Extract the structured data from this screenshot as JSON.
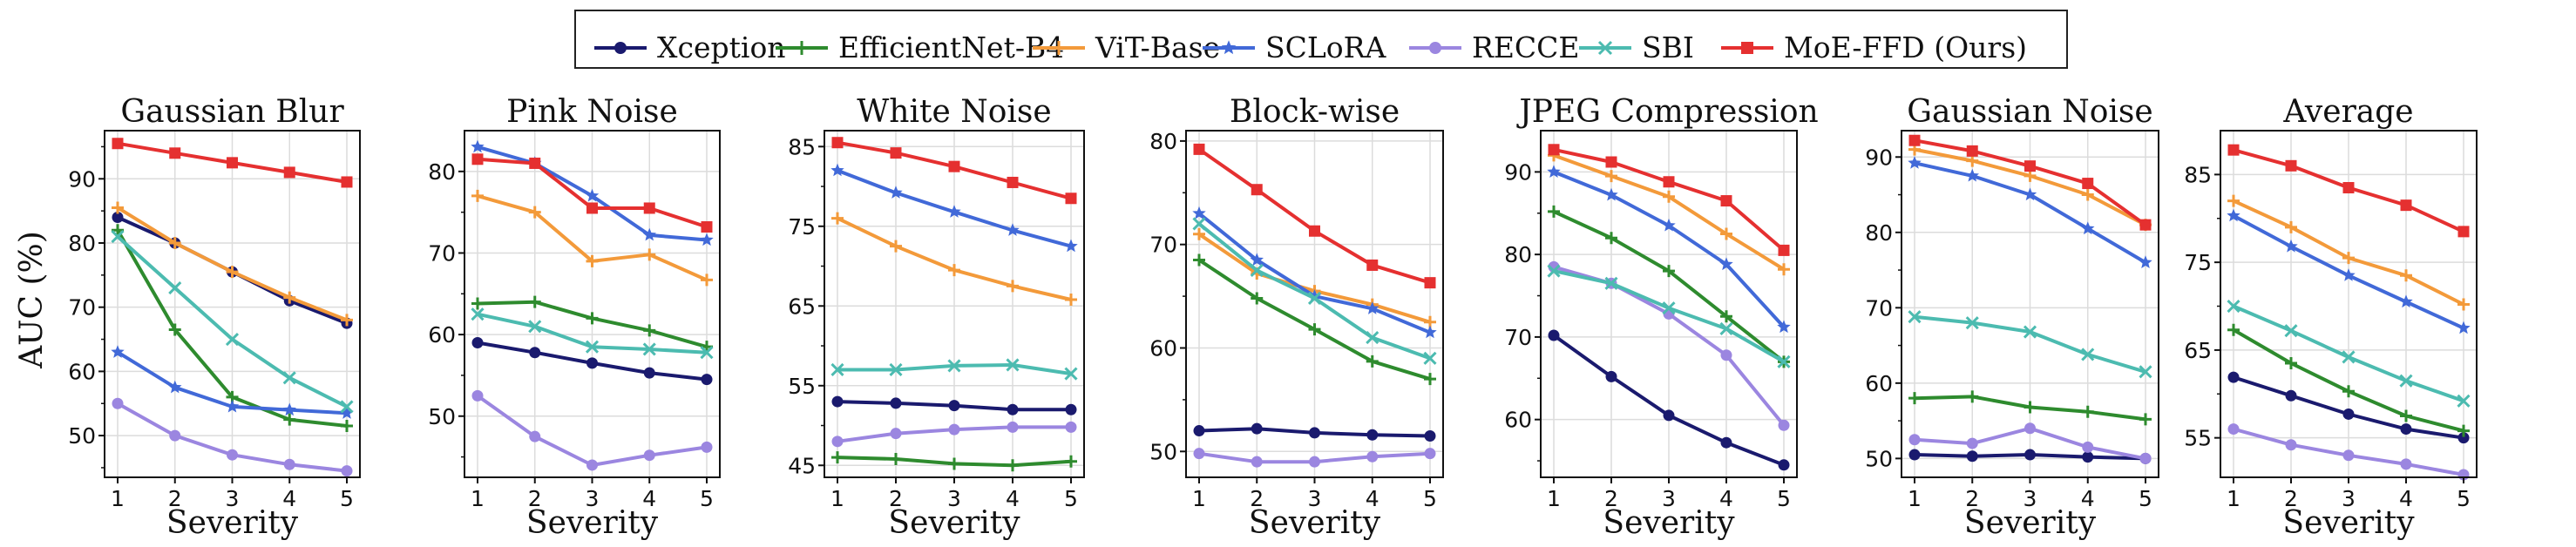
{
  "chart_data": {
    "type": "line",
    "ylabel": "AUC (%)",
    "xlabel": "Severity",
    "x": [
      1,
      2,
      3,
      4,
      5
    ],
    "legend": [
      {
        "name": "Xception",
        "color": "#1a1a6e",
        "marker": "circle"
      },
      {
        "name": "EfficientNet-B4",
        "color": "#2e8b2e",
        "marker": "plus"
      },
      {
        "name": "ViT-Base",
        "color": "#f39a3a",
        "marker": "plus"
      },
      {
        "name": "SCLoRA",
        "color": "#4169d8",
        "marker": "star"
      },
      {
        "name": "RECCE",
        "color": "#9b86e0",
        "marker": "circle"
      },
      {
        "name": "SBI",
        "color": "#4cbbb0",
        "marker": "x"
      },
      {
        "name": "MoE-FFD (Ours)",
        "color": "#e53030",
        "marker": "square"
      }
    ],
    "panels": [
      {
        "title": "Gaussian Blur",
        "ylim": [
          43.5,
          97.5
        ],
        "yticks": [
          50,
          60,
          70,
          80,
          90
        ],
        "series": [
          {
            "name": "Xception",
            "values": [
              84,
              80,
              75.5,
              71,
              67.5
            ]
          },
          {
            "name": "EfficientNet-B4",
            "values": [
              82,
              66.5,
              56,
              52.5,
              51.5
            ]
          },
          {
            "name": "ViT-Base",
            "values": [
              85.5,
              80,
              75.5,
              71.5,
              68
            ]
          },
          {
            "name": "SCLoRA",
            "values": [
              63,
              57.5,
              54.5,
              54,
              53.5
            ]
          },
          {
            "name": "RECCE",
            "values": [
              55,
              50,
              47,
              45.5,
              44.5
            ]
          },
          {
            "name": "SBI",
            "values": [
              81,
              73,
              65,
              59,
              54.5
            ]
          },
          {
            "name": "MoE-FFD (Ours)",
            "values": [
              95.5,
              94,
              92.5,
              91,
              89.5
            ]
          }
        ]
      },
      {
        "title": "Pink Noise",
        "ylim": [
          42.5,
          85
        ],
        "yticks": [
          50,
          60,
          70,
          80
        ],
        "series": [
          {
            "name": "Xception",
            "values": [
              59,
              57.8,
              56.5,
              55.3,
              54.5
            ]
          },
          {
            "name": "EfficientNet-B4",
            "values": [
              63.8,
              64,
              62,
              60.5,
              58.5
            ]
          },
          {
            "name": "ViT-Base",
            "values": [
              77,
              75,
              69,
              69.8,
              66.7
            ]
          },
          {
            "name": "SCLoRA",
            "values": [
              83,
              81,
              77,
              72.2,
              71.6
            ]
          },
          {
            "name": "RECCE",
            "values": [
              52.5,
              47.5,
              44,
              45.2,
              46.2
            ]
          },
          {
            "name": "SBI",
            "values": [
              62.5,
              61,
              58.5,
              58.2,
              57.8
            ]
          },
          {
            "name": "MoE-FFD (Ours)",
            "values": [
              81.5,
              81,
              75.5,
              75.5,
              73.2
            ]
          }
        ]
      },
      {
        "title": "White Noise",
        "ylim": [
          43.5,
          87
        ],
        "yticks": [
          45,
          55,
          65,
          75,
          85
        ],
        "series": [
          {
            "name": "Xception",
            "values": [
              53,
              52.8,
              52.5,
              52,
              52
            ]
          },
          {
            "name": "EfficientNet-B4",
            "values": [
              46,
              45.8,
              45.2,
              45,
              45.5
            ]
          },
          {
            "name": "ViT-Base",
            "values": [
              76,
              72.5,
              69.5,
              67.5,
              65.8
            ]
          },
          {
            "name": "SCLoRA",
            "values": [
              82,
              79.2,
              76.8,
              74.5,
              72.5
            ]
          },
          {
            "name": "RECCE",
            "values": [
              48,
              49,
              49.5,
              49.8,
              49.8
            ]
          },
          {
            "name": "SBI",
            "values": [
              57,
              57,
              57.5,
              57.6,
              56.5
            ]
          },
          {
            "name": "MoE-FFD (Ours)",
            "values": [
              85.5,
              84.2,
              82.5,
              80.5,
              78.5
            ]
          }
        ]
      },
      {
        "title": "Block-wise",
        "ylim": [
          47.5,
          81
        ],
        "yticks": [
          50,
          60,
          70,
          80
        ],
        "series": [
          {
            "name": "Xception",
            "values": [
              52,
              52.2,
              51.8,
              51.6,
              51.5
            ]
          },
          {
            "name": "EfficientNet-B4",
            "values": [
              68.5,
              64.8,
              61.8,
              58.7,
              57
            ]
          },
          {
            "name": "ViT-Base",
            "values": [
              71,
              67.2,
              65.5,
              64.2,
              62.5
            ]
          },
          {
            "name": "SCLoRA",
            "values": [
              73,
              68.5,
              65,
              63.8,
              61.5
            ]
          },
          {
            "name": "RECCE",
            "values": [
              49.8,
              49,
              49,
              49.5,
              49.8
            ]
          },
          {
            "name": "SBI",
            "values": [
              72,
              67.5,
              64.8,
              61,
              59
            ]
          },
          {
            "name": "MoE-FFD (Ours)",
            "values": [
              79.2,
              75.3,
              71.3,
              68,
              66.3
            ]
          }
        ]
      },
      {
        "title": "JPEG Compression",
        "ylim": [
          53,
          95
        ],
        "yticks": [
          60,
          70,
          80,
          90
        ],
        "series": [
          {
            "name": "Xception",
            "values": [
              70.2,
              65.2,
              60.5,
              57.2,
              54.5
            ]
          },
          {
            "name": "EfficientNet-B4",
            "values": [
              85.2,
              82,
              78,
              72.5,
              67
            ]
          },
          {
            "name": "ViT-Base",
            "values": [
              92,
              89.5,
              87,
              82.5,
              78.2
            ]
          },
          {
            "name": "SCLoRA",
            "values": [
              90,
              87.2,
              83.5,
              78.8,
              71.2
            ]
          },
          {
            "name": "RECCE",
            "values": [
              78.5,
              76.5,
              72.8,
              67.8,
              59.3
            ]
          },
          {
            "name": "SBI",
            "values": [
              78,
              76.5,
              73.5,
              71,
              67
            ]
          },
          {
            "name": "MoE-FFD (Ours)",
            "values": [
              92.7,
              91.2,
              88.8,
              86.5,
              80.5
            ]
          }
        ]
      },
      {
        "title": "Gaussian Noise",
        "ylim": [
          47.5,
          93.5
        ],
        "yticks": [
          50,
          60,
          70,
          80,
          90
        ],
        "series": [
          {
            "name": "Xception",
            "values": [
              50.5,
              50.3,
              50.5,
              50.2,
              50
            ]
          },
          {
            "name": "EfficientNet-B4",
            "values": [
              58,
              58.2,
              56.8,
              56.2,
              55.2
            ]
          },
          {
            "name": "ViT-Base",
            "values": [
              91,
              89.5,
              87.5,
              85,
              81
            ]
          },
          {
            "name": "SCLoRA",
            "values": [
              89.2,
              87.5,
              85,
              80.5,
              76
            ]
          },
          {
            "name": "RECCE",
            "values": [
              52.5,
              52,
              54,
              51.5,
              50
            ]
          },
          {
            "name": "SBI",
            "values": [
              68.8,
              68,
              66.8,
              63.8,
              61.5
            ]
          },
          {
            "name": "MoE-FFD (Ours)",
            "values": [
              92.2,
              90.8,
              88.8,
              86.5,
              81
            ]
          }
        ]
      },
      {
        "title": "Average",
        "ylim": [
          50.5,
          90
        ],
        "yticks": [
          55,
          65,
          75,
          85
        ],
        "series": [
          {
            "name": "Xception",
            "values": [
              61.9,
              59.8,
              57.7,
              56,
              55
            ]
          },
          {
            "name": "EfficientNet-B4",
            "values": [
              67.3,
              63.5,
              60.3,
              57.5,
              55.8
            ]
          },
          {
            "name": "ViT-Base",
            "values": [
              82,
              79,
              75.5,
              73.5,
              70.2
            ]
          },
          {
            "name": "SCLoRA",
            "values": [
              80.3,
              76.8,
              73.5,
              70.5,
              67.5
            ]
          },
          {
            "name": "RECCE",
            "values": [
              56,
              54.2,
              53,
              52,
              50.8
            ]
          },
          {
            "name": "SBI",
            "values": [
              70,
              67.2,
              64.2,
              61.5,
              59.2
            ]
          },
          {
            "name": "MoE-FFD (Ours)",
            "values": [
              87.8,
              86,
              83.5,
              81.5,
              78.5
            ]
          }
        ]
      }
    ]
  }
}
